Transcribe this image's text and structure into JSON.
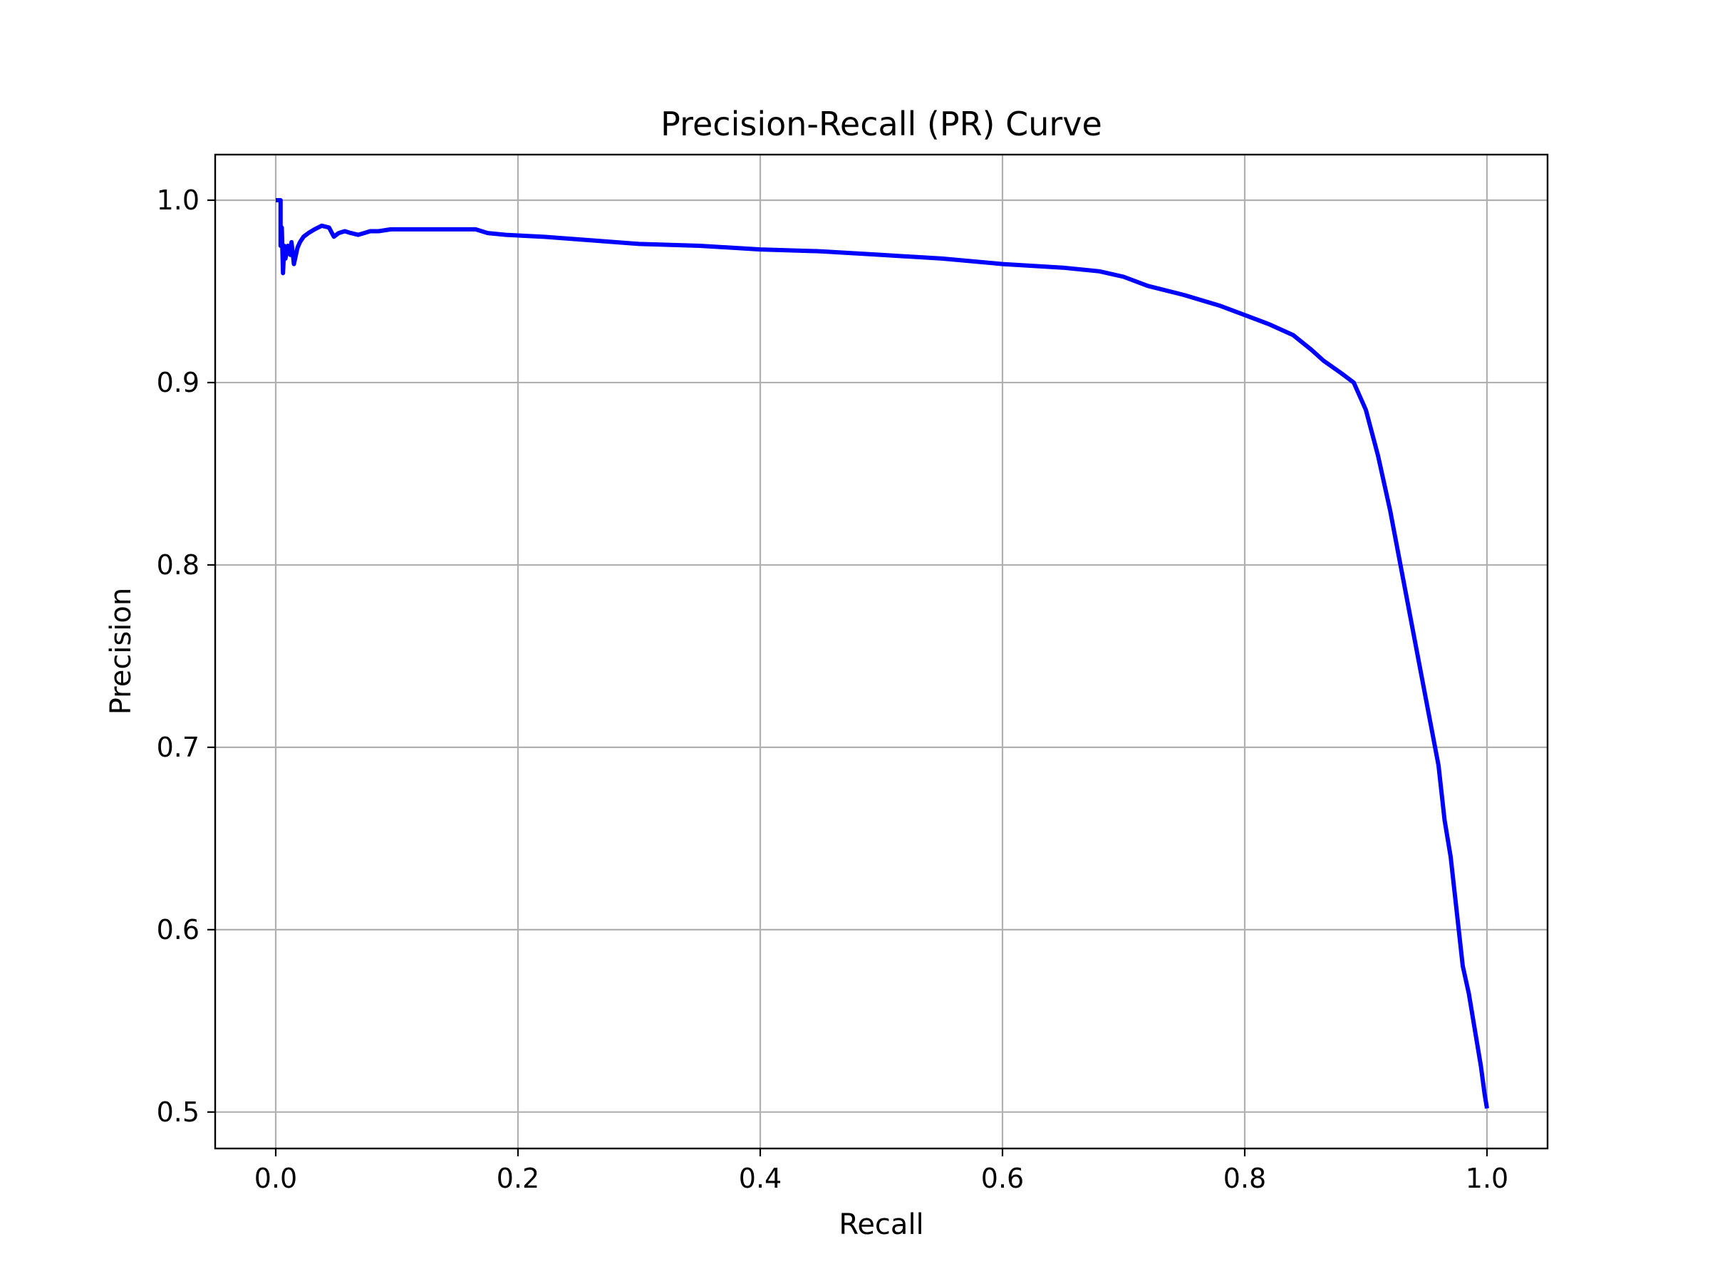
{
  "colors": {
    "background": "#ffffff",
    "series": "#0000ff",
    "grid": "#b0b0b0",
    "axis": "#000000"
  },
  "chart_data": {
    "type": "line",
    "title": "Precision-Recall (PR) Curve",
    "xlabel": "Recall",
    "ylabel": "Precision",
    "xlim": [
      -0.05,
      1.05
    ],
    "ylim": [
      0.48,
      1.025
    ],
    "grid": true,
    "x_ticks": [
      0.0,
      0.2,
      0.4,
      0.6,
      0.8,
      1.0
    ],
    "x_tick_labels": [
      "0.0",
      "0.2",
      "0.4",
      "0.6",
      "0.8",
      "1.0"
    ],
    "y_ticks": [
      0.5,
      0.6,
      0.7,
      0.8,
      0.9,
      1.0
    ],
    "y_tick_labels": [
      "0.5",
      "0.6",
      "0.7",
      "0.8",
      "0.9",
      "1.0"
    ],
    "series": [
      {
        "x": [
          0.0,
          0.004,
          0.004,
          0.005,
          0.006,
          0.007,
          0.008,
          0.01,
          0.012,
          0.013,
          0.015,
          0.016,
          0.017,
          0.018,
          0.02,
          0.023,
          0.027,
          0.032,
          0.038,
          0.044,
          0.048,
          0.05,
          0.052,
          0.057,
          0.062,
          0.068,
          0.073,
          0.078,
          0.085,
          0.095,
          0.105,
          0.115,
          0.13,
          0.15,
          0.165,
          0.175,
          0.19,
          0.22,
          0.26,
          0.3,
          0.35,
          0.4,
          0.45,
          0.5,
          0.55,
          0.6,
          0.65,
          0.68,
          0.7,
          0.72,
          0.75,
          0.78,
          0.8,
          0.82,
          0.84,
          0.855,
          0.865,
          0.88,
          0.89,
          0.9,
          0.91,
          0.92,
          0.93,
          0.94,
          0.95,
          0.96,
          0.965,
          0.97,
          0.975,
          0.98,
          0.985,
          0.99,
          0.995,
          0.998,
          1.0
        ],
        "y": [
          1.0,
          1.0,
          0.975,
          0.985,
          0.96,
          0.975,
          0.968,
          0.975,
          0.97,
          0.977,
          0.965,
          0.968,
          0.971,
          0.974,
          0.977,
          0.98,
          0.982,
          0.984,
          0.986,
          0.985,
          0.98,
          0.981,
          0.982,
          0.983,
          0.982,
          0.981,
          0.982,
          0.983,
          0.983,
          0.984,
          0.984,
          0.984,
          0.984,
          0.984,
          0.984,
          0.982,
          0.981,
          0.98,
          0.978,
          0.976,
          0.975,
          0.973,
          0.972,
          0.97,
          0.968,
          0.965,
          0.963,
          0.961,
          0.958,
          0.953,
          0.948,
          0.942,
          0.937,
          0.932,
          0.926,
          0.918,
          0.912,
          0.905,
          0.9,
          0.885,
          0.86,
          0.83,
          0.795,
          0.76,
          0.725,
          0.69,
          0.66,
          0.64,
          0.61,
          0.58,
          0.565,
          0.545,
          0.525,
          0.51,
          0.502
        ]
      }
    ]
  }
}
